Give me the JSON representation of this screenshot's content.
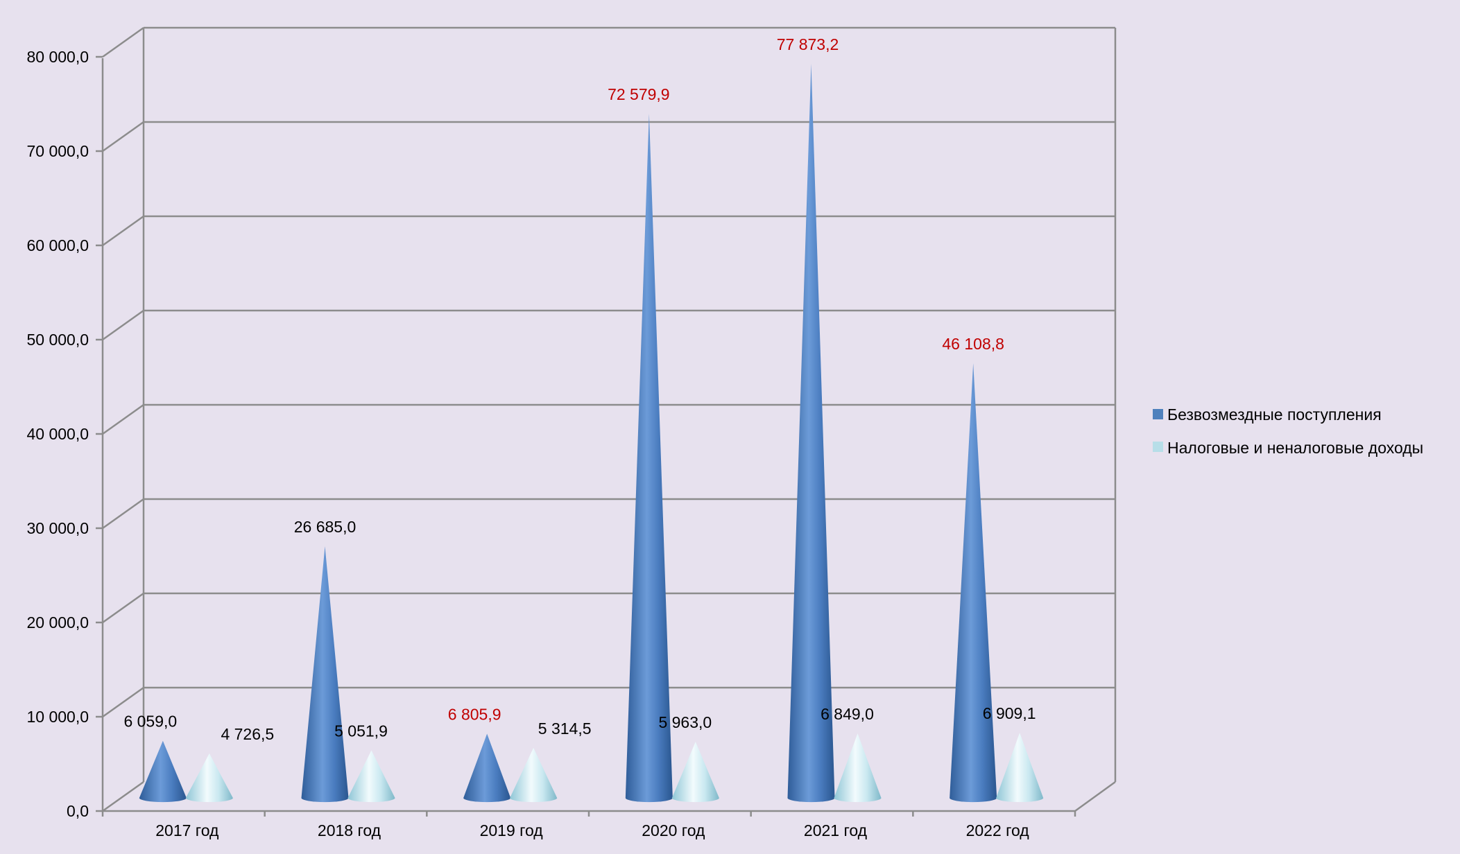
{
  "chart_data": {
    "type": "bar",
    "shape": "cone",
    "three_d": true,
    "title": "",
    "xlabel": "",
    "ylabel": "",
    "ylim": [
      0,
      80000
    ],
    "grid": true,
    "legend_position": "right",
    "categories": [
      "2017 год",
      "2018 год",
      "2019 год",
      "2020 год",
      "2021 год",
      "2022 год"
    ],
    "y_ticks": [
      "0,0",
      "10 000,0",
      "20 000,0",
      "30 000,0",
      "40 000,0",
      "50 000,0",
      "60 000,0",
      "70 000,0",
      "80 000,0"
    ],
    "series": [
      {
        "name": "Безвозмездные поступления",
        "color": "#4f81bd",
        "values": [
          6059.0,
          26685.0,
          6805.9,
          72579.9,
          77873.2,
          46108.8
        ],
        "labels": [
          "6 059,0",
          "26 685,0",
          "6 805,9",
          "72 579,9",
          "77 873,2",
          "46 108,8"
        ],
        "label_colors": [
          "#000000",
          "#000000",
          "#c00000",
          "#c00000",
          "#c00000",
          "#c00000"
        ]
      },
      {
        "name": "Налоговые и неналоговые доходы",
        "color": "#b7dee8",
        "values": [
          4726.5,
          5051.9,
          5314.5,
          5963.0,
          6849.0,
          6909.1
        ],
        "labels": [
          "4 726,5",
          "5 051,9",
          "5 314,5",
          "5 963,0",
          "6 849,0",
          "6 909,1"
        ],
        "label_colors": [
          "#000000",
          "#000000",
          "#000000",
          "#000000",
          "#000000",
          "#000000"
        ]
      }
    ]
  }
}
